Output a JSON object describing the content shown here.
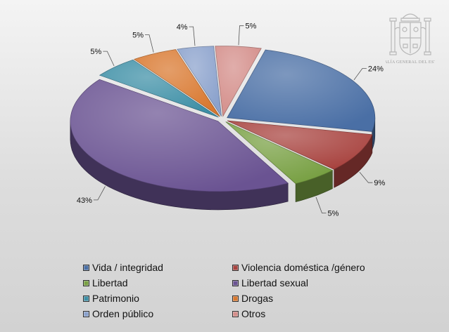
{
  "chart_data": {
    "type": "pie",
    "categories": [
      "Vida / integridad",
      "Violencia doméstica /género",
      "Libertad",
      "Libertad sexual",
      "Patrimonio",
      "Drogas",
      "Orden público",
      "Otros"
    ],
    "values": [
      24,
      9,
      5,
      43,
      5,
      5,
      4,
      5
    ],
    "value_labels": [
      "24%",
      "9%",
      "5%",
      "43%",
      "5%",
      "5%",
      "4%",
      "5%"
    ],
    "colors": [
      "#4a6fa5",
      "#a8433f",
      "#78a043",
      "#6a5392",
      "#3d8fa6",
      "#d9782f",
      "#8aa1cc",
      "#d48e8a"
    ],
    "legend_position": "bottom",
    "style": "3d-exploded"
  },
  "logo": {
    "caption": "FISCALÍA GENERAL DEL ESTADO"
  }
}
